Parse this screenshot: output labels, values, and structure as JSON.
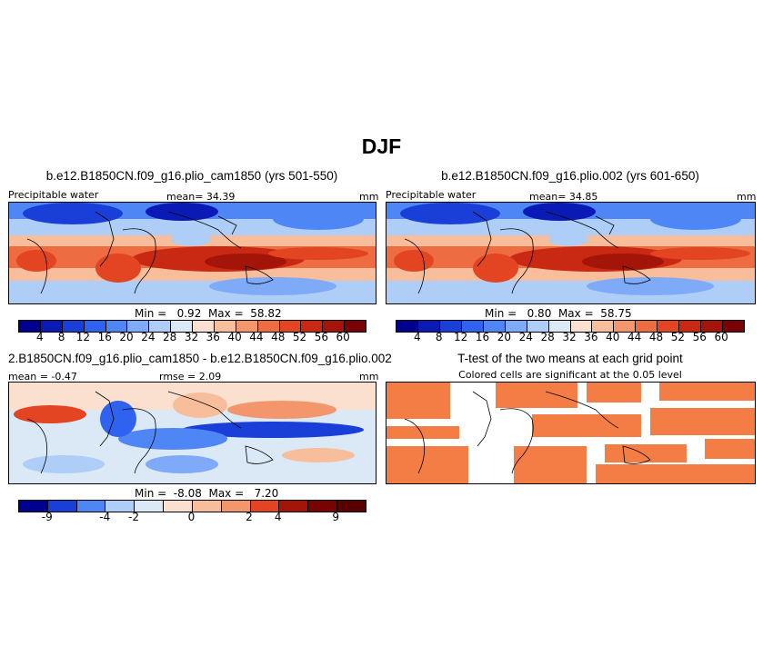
{
  "main_title": "DJF",
  "panels": {
    "p1": {
      "title": "b.e12.B1850CN.f09_g16.plio_cam1850 (yrs 501-550)",
      "left": "Precipitable water",
      "center": "mean=  34.39",
      "right": "mm",
      "minmax": "Min =   0.92  Max =  58.82"
    },
    "p2": {
      "title": "b.e12.B1850CN.f09_g16.plio.002 (yrs 601-650)",
      "left": "Precipitable water",
      "center": "mean=  34.85",
      "right": "mm",
      "minmax": "Min =   0.80  Max =  58.75"
    },
    "p3": {
      "title": "2.B1850CN.f09_g16.plio_cam1850 - b.e12.B1850CN.f09_g16.plio.002",
      "left": "mean =  -0.47",
      "center": "rmse =   2.09",
      "right": "mm",
      "minmax": "Min =  -8.08  Max =   7.20"
    },
    "p4": {
      "title": "T-test of the two means at each grid point",
      "subtitle": "Colored cells are significant at the 0.05 level"
    }
  },
  "colorbar_abs": {
    "labels": [
      "4",
      "8",
      "12",
      "16",
      "20",
      "24",
      "28",
      "32",
      "36",
      "40",
      "44",
      "48",
      "52",
      "56",
      "60"
    ],
    "colors": [
      "#00008f",
      "#0a1ab4",
      "#1a3fd8",
      "#2f62ee",
      "#4f86f5",
      "#7eaaf7",
      "#aecdf7",
      "#dbe9f7",
      "#fbe0cf",
      "#f8bd9b",
      "#f4966b",
      "#ee6c41",
      "#e34421",
      "#c92812",
      "#a41509",
      "#790303"
    ]
  },
  "colorbar_diff": {
    "labels": [
      "-9",
      "-4",
      "-2",
      "0",
      "2",
      "4",
      "9"
    ],
    "colors": [
      "#00008f",
      "#1a3fd8",
      "#4f86f5",
      "#aecdf7",
      "#dbe9f7",
      "#fbe0cf",
      "#f8bd9b",
      "#f4966b",
      "#e34421",
      "#a41509",
      "#790303",
      "#5a0000"
    ]
  },
  "significance_color": "#f47c45",
  "ocean_label": "",
  "icons": [
    "coastline-map",
    "colorbar"
  ]
}
